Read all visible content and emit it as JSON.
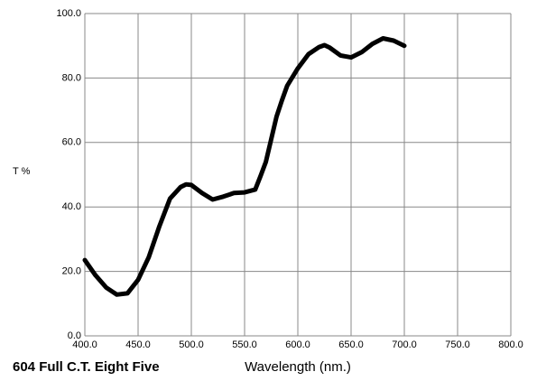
{
  "chart_data": {
    "type": "line",
    "title": "604 Full C.T. Eight Five",
    "x_label": "Wavelength (nm.)",
    "y_label": "T %",
    "x": [
      400,
      410,
      420,
      430,
      440,
      450,
      460,
      470,
      480,
      490,
      495,
      500,
      510,
      520,
      530,
      540,
      550,
      560,
      565,
      570,
      575,
      580,
      585,
      590,
      600,
      610,
      620,
      625,
      630,
      640,
      650,
      660,
      670,
      680,
      690,
      700
    ],
    "series": [
      {
        "name": "T %",
        "color": "#000000",
        "values": [
          23.5,
          18.8,
          15,
          12.8,
          13.2,
          17.4,
          24.4,
          34,
          42.6,
          46.2,
          47,
          46.8,
          44.3,
          42.3,
          43.2,
          44.3,
          44.5,
          45.4,
          49.6,
          54,
          61,
          68,
          73,
          77.6,
          83,
          87.4,
          89.6,
          90.2,
          89.4,
          87,
          86.4,
          88,
          90.6,
          92.3,
          91.6,
          90
        ]
      }
    ],
    "xlim": [
      400,
      800
    ],
    "xticks": [
      {
        "value": 400,
        "label": "400.0"
      },
      {
        "value": 450,
        "label": "450.0"
      },
      {
        "value": 500,
        "label": "500.0"
      },
      {
        "value": 550,
        "label": "550.0"
      },
      {
        "value": 600,
        "label": "600.0"
      },
      {
        "value": 650,
        "label": "650.0"
      },
      {
        "value": 700,
        "label": "700.0"
      },
      {
        "value": 750,
        "label": "750.0"
      },
      {
        "value": 800,
        "label": "800.0"
      }
    ],
    "ylim": [
      0,
      100
    ],
    "yticks": [
      {
        "value": 0,
        "label": "0.0"
      },
      {
        "value": 20,
        "label": "20.0"
      },
      {
        "value": 40,
        "label": "40.0"
      },
      {
        "value": 60,
        "label": "60.0"
      },
      {
        "value": 80,
        "label": "80.0"
      },
      {
        "value": 100,
        "label": "100.0"
      }
    ],
    "grid": true
  }
}
